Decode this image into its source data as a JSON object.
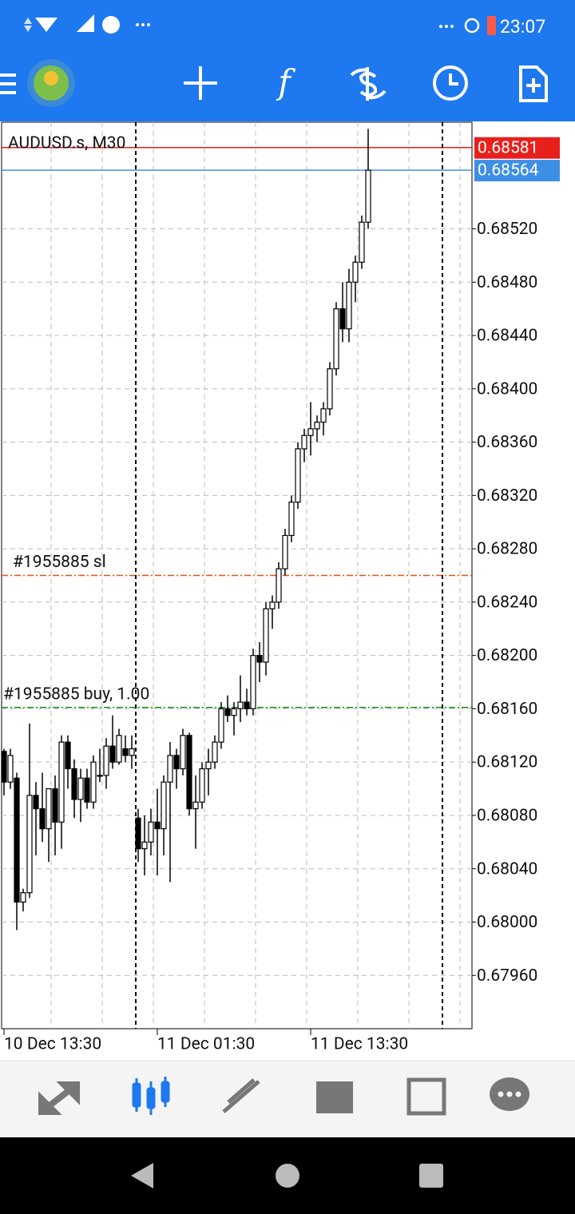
{
  "status_bar": {
    "time": "23:07"
  },
  "chart_data": {
    "type": "candlestick",
    "title": "AUDUSD.s, M30",
    "grid": true,
    "bull_color": "#ffffff",
    "bear_color": "#000000",
    "outline_color": "#000000",
    "categories": [
      "10 Dec 13:30",
      null,
      null,
      null,
      null,
      null,
      null,
      null,
      null,
      null,
      null,
      null,
      null,
      null,
      null,
      null,
      null,
      null,
      null,
      null,
      null,
      null,
      null,
      null,
      "11 Dec 01:30",
      null,
      null,
      null,
      null,
      null,
      null,
      null,
      null,
      null,
      null,
      null,
      null,
      null,
      null,
      null,
      null,
      null,
      null,
      null,
      null,
      null,
      null,
      null,
      "11 Dec 13:30",
      null,
      null,
      null,
      null,
      null,
      null,
      null,
      null,
      null
    ],
    "open": [
      0.68128,
      0.68105,
      0.68108,
      0.68015,
      0.68022,
      0.68095,
      0.68085,
      0.6807,
      0.681,
      0.68075,
      0.68135,
      0.68115,
      0.68092,
      0.68108,
      0.6809,
      0.6811,
      0.6811,
      0.68132,
      0.6812,
      0.6813,
      0.68125,
      0.68078,
      0.68055,
      0.6806,
      0.68075,
      0.6807,
      0.68105,
      0.68125,
      0.68115,
      0.6814,
      0.68085,
      0.6809,
      0.68115,
      0.6812,
      0.68135,
      0.6816,
      0.68155,
      0.6816,
      0.68165,
      0.6816,
      0.682,
      0.68195,
      0.68235,
      0.6824,
      0.68265,
      0.6829,
      0.68315,
      0.68355,
      0.68365,
      0.6837,
      0.68375,
      0.68385,
      0.68415,
      0.6846,
      0.68445,
      0.6848,
      0.68495,
      0.68525
    ],
    "high": [
      0.6813,
      0.6813,
      0.68112,
      0.68025,
      0.68149,
      0.68105,
      0.68112,
      0.68095,
      0.6811,
      0.6814,
      0.6814,
      0.68122,
      0.68115,
      0.68115,
      0.68125,
      0.6813,
      0.68138,
      0.68155,
      0.68145,
      0.6814,
      0.6814,
      0.68085,
      0.6808,
      0.68085,
      0.681,
      0.6811,
      0.68135,
      0.6813,
      0.68145,
      0.68142,
      0.6811,
      0.6812,
      0.6813,
      0.6814,
      0.68165,
      0.6817,
      0.68165,
      0.68185,
      0.68175,
      0.68205,
      0.6821,
      0.6824,
      0.68245,
      0.6827,
      0.68295,
      0.6832,
      0.6836,
      0.6837,
      0.6839,
      0.6838,
      0.6839,
      0.6842,
      0.68465,
      0.6848,
      0.6849,
      0.685,
      0.6853,
      0.68595
    ],
    "low": [
      0.68095,
      0.681,
      0.67994,
      0.68008,
      0.68018,
      0.6805,
      0.6806,
      0.68045,
      0.6805,
      0.68055,
      0.681,
      0.68078,
      0.68075,
      0.68085,
      0.68085,
      0.68105,
      0.681,
      0.68115,
      0.68118,
      0.6812,
      0.68115,
      0.68045,
      0.68035,
      0.6805,
      0.68035,
      0.6805,
      0.6803,
      0.681,
      0.6811,
      0.6808,
      0.68055,
      0.68085,
      0.68095,
      0.68115,
      0.6813,
      0.6815,
      0.6814,
      0.6815,
      0.68155,
      0.68155,
      0.6818,
      0.68185,
      0.6822,
      0.68235,
      0.6826,
      0.68285,
      0.6831,
      0.68345,
      0.6835,
      0.6836,
      0.68365,
      0.6838,
      0.6841,
      0.68435,
      0.68435,
      0.68465,
      0.6849,
      0.6852
    ],
    "close": [
      0.68105,
      0.68125,
      0.68015,
      0.68022,
      0.68095,
      0.68085,
      0.6807,
      0.681,
      0.68075,
      0.68135,
      0.68115,
      0.68092,
      0.68108,
      0.6809,
      0.6812,
      0.6811,
      0.68132,
      0.6812,
      0.6814,
      0.68125,
      0.6813,
      0.68055,
      0.6806,
      0.68075,
      0.6807,
      0.68105,
      0.68125,
      0.68115,
      0.6814,
      0.68085,
      0.6809,
      0.68115,
      0.6812,
      0.68135,
      0.6816,
      0.68155,
      0.6816,
      0.68165,
      0.6816,
      0.682,
      0.68195,
      0.68235,
      0.6824,
      0.68265,
      0.6829,
      0.68315,
      0.68355,
      0.68365,
      0.6837,
      0.68375,
      0.68385,
      0.68415,
      0.6846,
      0.68445,
      0.6848,
      0.68495,
      0.68525,
      0.68564
    ],
    "ylim": [
      0.6792,
      0.686
    ],
    "yticks": [
      {
        "value": 0.6796,
        "label": "0.67960"
      },
      {
        "value": 0.68,
        "label": "0.68000"
      },
      {
        "value": 0.6804,
        "label": "0.68040"
      },
      {
        "value": 0.6808,
        "label": "0.68080"
      },
      {
        "value": 0.6812,
        "label": "0.68120"
      },
      {
        "value": 0.6816,
        "label": "0.68160"
      },
      {
        "value": 0.682,
        "label": "0.68200"
      },
      {
        "value": 0.6824,
        "label": "0.68240"
      },
      {
        "value": 0.6828,
        "label": "0.68280"
      },
      {
        "value": 0.6832,
        "label": "0.68320"
      },
      {
        "value": 0.6836,
        "label": "0.68360"
      },
      {
        "value": 0.684,
        "label": "0.68400"
      },
      {
        "value": 0.6844,
        "label": "0.68440"
      },
      {
        "value": 0.6848,
        "label": "0.68480"
      },
      {
        "value": 0.6852,
        "label": "0.68520"
      }
    ],
    "price_lines": [
      {
        "value": 0.68581,
        "label": "0.68581",
        "color": "#e8201c"
      },
      {
        "value": 0.68564,
        "label": "0.68564",
        "color": "#3d8fe6"
      }
    ],
    "order_lines": [
      {
        "value": 0.6826,
        "text": "#1955885 sl",
        "color": "#f04a14"
      },
      {
        "value": 0.68161,
        "text": "#1955885 buy, 1.00",
        "color": "#168a16"
      }
    ]
  }
}
